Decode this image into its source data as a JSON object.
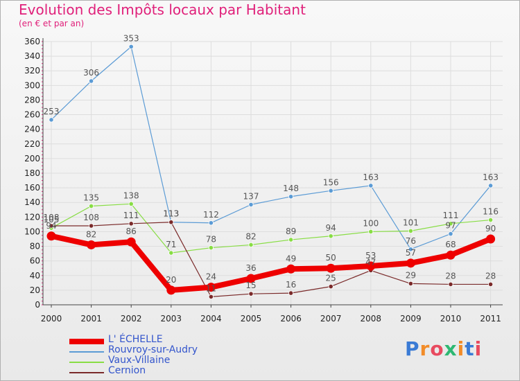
{
  "chart_data": {
    "type": "line",
    "title": "Evolution des Impôts locaux par Habitant",
    "subtitle": "(en € et par an)",
    "categories": [
      "2000",
      "2001",
      "2002",
      "2003",
      "2004",
      "2005",
      "2006",
      "2007",
      "2008",
      "2009",
      "2010",
      "2011"
    ],
    "ylim": [
      0,
      360
    ],
    "yticks": [
      0,
      20,
      40,
      60,
      80,
      100,
      120,
      140,
      160,
      180,
      200,
      220,
      240,
      260,
      280,
      300,
      320,
      340,
      360
    ],
    "series": [
      {
        "name": "L' ÉCHELLE",
        "color": "#ee0000",
        "values": [
          94,
          82,
          86,
          20,
          24,
          36,
          49,
          50,
          53,
          57,
          68,
          90
        ]
      },
      {
        "name": "Rouvroy-sur-Audry",
        "color": "#5b9bd5",
        "values": [
          253,
          306,
          353,
          113,
          112,
          137,
          148,
          156,
          163,
          76,
          97,
          163
        ]
      },
      {
        "name": "Vaux-Villaine",
        "color": "#88dd44",
        "values": [
          105,
          135,
          138,
          71,
          78,
          82,
          89,
          94,
          100,
          101,
          111,
          116
        ]
      },
      {
        "name": "Cernion",
        "color": "#7a2a2a",
        "values": [
          108,
          108,
          111,
          113,
          11,
          15,
          16,
          25,
          47,
          29,
          28,
          28
        ]
      }
    ],
    "logo_text": "Proxiti"
  }
}
